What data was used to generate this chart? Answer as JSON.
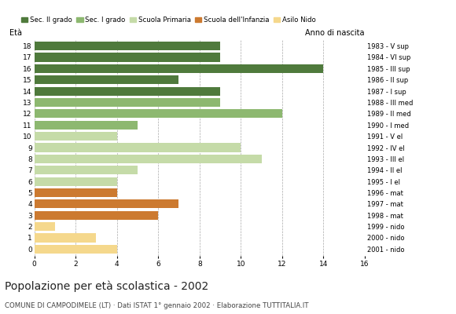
{
  "ages": [
    0,
    1,
    2,
    3,
    4,
    5,
    6,
    7,
    8,
    9,
    10,
    11,
    12,
    13,
    14,
    15,
    16,
    17,
    18
  ],
  "values": [
    4,
    3,
    1,
    6,
    7,
    4,
    4,
    5,
    11,
    10,
    4,
    5,
    12,
    9,
    9,
    7,
    14,
    9,
    9
  ],
  "bar_colors": [
    "#f5d88c",
    "#f5d88c",
    "#f5d88c",
    "#cc7a30",
    "#cc7a30",
    "#cc7a30",
    "#c5dba8",
    "#c5dba8",
    "#c5dba8",
    "#c5dba8",
    "#c5dba8",
    "#8db870",
    "#8db870",
    "#8db870",
    "#4f7a3c",
    "#4f7a3c",
    "#4f7a3c",
    "#4f7a3c",
    "#4f7a3c"
  ],
  "right_labels": [
    "2001 - nido",
    "2000 - nido",
    "1999 - nido",
    "1998 - mat",
    "1997 - mat",
    "1996 - mat",
    "1995 - I el",
    "1994 - II el",
    "1993 - III el",
    "1992 - IV el",
    "1991 - V el",
    "1990 - I med",
    "1989 - II med",
    "1988 - III med",
    "1987 - I sup",
    "1986 - II sup",
    "1985 - III sup",
    "1984 - VI sup",
    "1983 - V sup"
  ],
  "xlim": [
    0,
    16
  ],
  "xticks": [
    0,
    2,
    4,
    6,
    8,
    10,
    12,
    14,
    16
  ],
  "title": "Popolazione per età scolastica - 2002",
  "subtitle": "COMUNE DI CAMPODIMELE (LT) · Dati ISTAT 1° gennaio 2002 · Elaborazione TUTTITALIA.IT",
  "ylabel_left": "Età",
  "ylabel_right": "Anno di nascita",
  "legend_labels": [
    "Sec. II grado",
    "Sec. I grado",
    "Scuola Primaria",
    "Scuola dell'Infanzia",
    "Asilo Nido"
  ],
  "legend_colors": [
    "#4f7a3c",
    "#8db870",
    "#c5dba8",
    "#cc7a30",
    "#f5d88c"
  ],
  "background_color": "#ffffff",
  "grid_color": "#aaaaaa"
}
